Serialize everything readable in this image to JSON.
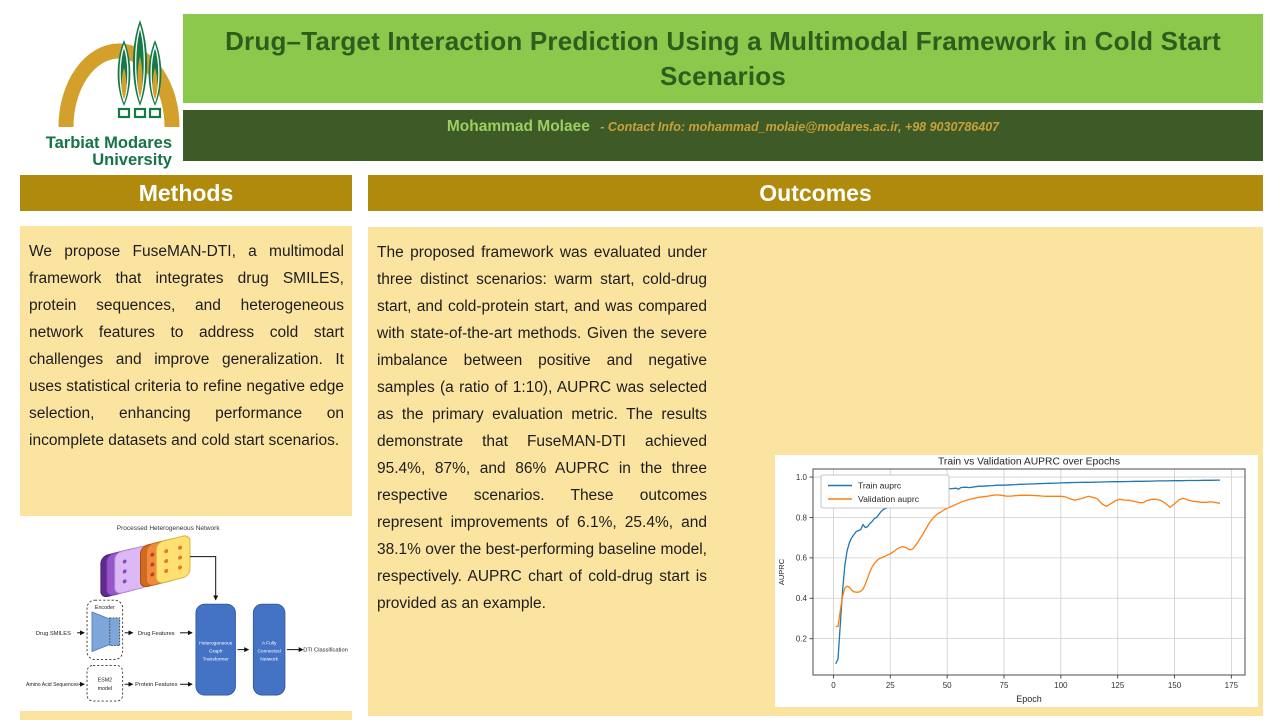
{
  "logo": {
    "name": "tarbiat-modares-university-logo",
    "line1": "Tarbiat Modares",
    "line2": "University"
  },
  "header": {
    "title": "Drug–Target Interaction Prediction Using a Multimodal Framework in Cold Start Scenarios",
    "author": "Mohammad Molaee",
    "contact": "- Contact Info: mohammad_molaie@modares.ac.ir, +98 9030786407"
  },
  "methods": {
    "heading": "Methods",
    "body": "We propose FuseMAN-DTI, a multimodal framework that integrates drug SMILES, protein sequences, and heterogeneous network features to address cold start challenges and improve generalization. It uses statistical criteria to refine negative edge selection, enhancing performance on incomplete datasets and cold start scenarios."
  },
  "outcomes": {
    "heading": "Outcomes",
    "body": "The proposed framework was evaluated under three distinct scenarios: warm start, cold-drug start, and cold-protein start, and was compared with state-of-the-art methods. Given the severe imbalance between positive and negative samples (a ratio of 1:10), AUPRC was selected as the primary evaluation metric. The results demonstrate that FuseMAN-DTI achieved 95.4%, 87%, and 86% AUPRC in the three respective scenarios. These outcomes represent improvements of 6.1%, 25.4%, and 38.1% over the best-performing baseline model, respectively. AUPRC chart of cold-drug start is provided as an example."
  },
  "diagram": {
    "title": "Processed Heterogeneous Network",
    "drug_input": "Drug SMILES",
    "encoder": "Encoder",
    "drug_features": "Drug Features",
    "protein_input": "Amino Acid Sequences",
    "esm2_l1": "ESM2",
    "esm2_l2": "model",
    "protein_features": "Protein Features",
    "hgt_l1": "Heterogeneous",
    "hgt_l2": "Graph",
    "hgt_l3": "Transformer",
    "fcn_l1": "A Fully",
    "fcn_l2": "Connected",
    "fcn_l3": "Network",
    "output": "DTI Classification"
  },
  "colors": {
    "title_bar": "#8CC84B",
    "title_text": "#2F5D1D",
    "author_bar": "#3E5B27",
    "author_name": "#9CCE62",
    "contact_gold": "#C8A13C",
    "section_gold": "#B08A0D",
    "panel_yellow": "#FBE3A0",
    "diagram_blue": "#4472C4",
    "train_blue": "#1f77b4",
    "validation_orange": "#ff7f0e"
  },
  "chart_data": {
    "type": "line",
    "title": "Train vs Validation AUPRC over Epochs",
    "xlabel": "Epoch",
    "ylabel": "AUPRC",
    "xlim": [
      -9,
      181
    ],
    "ylim": [
      0.02,
      1.04
    ],
    "xticks": [
      0,
      25,
      50,
      75,
      100,
      125,
      150,
      175
    ],
    "yticks": [
      0.2,
      0.4,
      0.6,
      0.8,
      1.0
    ],
    "grid": true,
    "legend_position": "upper left",
    "series": [
      {
        "name": "Train auprc",
        "color": "#1f77b4",
        "points": [
          [
            1,
            0.075
          ],
          [
            2,
            0.1
          ],
          [
            3,
            0.27
          ],
          [
            4,
            0.44
          ],
          [
            5,
            0.56
          ],
          [
            6,
            0.635
          ],
          [
            7,
            0.675
          ],
          [
            8,
            0.7
          ],
          [
            9,
            0.715
          ],
          [
            10,
            0.73
          ],
          [
            11,
            0.735
          ],
          [
            12,
            0.74
          ],
          [
            13,
            0.765
          ],
          [
            14,
            0.75
          ],
          [
            15,
            0.755
          ],
          [
            16,
            0.77
          ],
          [
            17,
            0.78
          ],
          [
            18,
            0.795
          ],
          [
            19,
            0.8
          ],
          [
            20,
            0.815
          ],
          [
            21,
            0.83
          ],
          [
            22,
            0.84
          ],
          [
            23,
            0.845
          ],
          [
            24,
            0.85
          ],
          [
            25,
            0.855
          ],
          [
            26,
            0.853
          ],
          [
            27,
            0.86
          ],
          [
            28,
            0.857
          ],
          [
            29,
            0.855
          ],
          [
            30,
            0.862
          ],
          [
            31,
            0.868
          ],
          [
            32,
            0.872
          ],
          [
            33,
            0.878
          ],
          [
            34,
            0.888
          ],
          [
            35,
            0.895
          ],
          [
            36,
            0.885
          ],
          [
            37,
            0.89
          ],
          [
            38,
            0.9
          ],
          [
            39,
            0.895
          ],
          [
            40,
            0.91
          ],
          [
            42,
            0.915
          ],
          [
            44,
            0.925
          ],
          [
            46,
            0.93
          ],
          [
            48,
            0.928
          ],
          [
            50,
            0.94
          ],
          [
            52,
            0.943
          ],
          [
            54,
            0.945
          ],
          [
            55,
            0.94
          ],
          [
            56,
            0.948
          ],
          [
            58,
            0.95
          ],
          [
            60,
            0.948
          ],
          [
            62,
            0.952
          ],
          [
            64,
            0.955
          ],
          [
            66,
            0.955
          ],
          [
            68,
            0.957
          ],
          [
            70,
            0.958
          ],
          [
            72,
            0.96
          ],
          [
            75,
            0.96
          ],
          [
            78,
            0.962
          ],
          [
            80,
            0.963
          ],
          [
            82,
            0.964
          ],
          [
            85,
            0.965
          ],
          [
            88,
            0.966
          ],
          [
            90,
            0.967
          ],
          [
            92,
            0.968
          ],
          [
            95,
            0.969
          ],
          [
            98,
            0.97
          ],
          [
            100,
            0.971
          ],
          [
            103,
            0.972
          ],
          [
            106,
            0.973
          ],
          [
            110,
            0.974
          ],
          [
            113,
            0.974
          ],
          [
            116,
            0.975
          ],
          [
            120,
            0.976
          ],
          [
            123,
            0.977
          ],
          [
            126,
            0.977
          ],
          [
            130,
            0.978
          ],
          [
            133,
            0.979
          ],
          [
            136,
            0.979
          ],
          [
            140,
            0.98
          ],
          [
            143,
            0.981
          ],
          [
            146,
            0.981
          ],
          [
            150,
            0.982
          ],
          [
            153,
            0.982
          ],
          [
            156,
            0.983
          ],
          [
            160,
            0.983
          ],
          [
            163,
            0.984
          ],
          [
            166,
            0.984
          ],
          [
            170,
            0.985
          ]
        ]
      },
      {
        "name": "Validation auprc",
        "color": "#ff7f0e",
        "points": [
          [
            1,
            0.26
          ],
          [
            2,
            0.26
          ],
          [
            3,
            0.34
          ],
          [
            4,
            0.41
          ],
          [
            5,
            0.45
          ],
          [
            6,
            0.46
          ],
          [
            7,
            0.455
          ],
          [
            8,
            0.44
          ],
          [
            9,
            0.432
          ],
          [
            10,
            0.43
          ],
          [
            11,
            0.43
          ],
          [
            12,
            0.435
          ],
          [
            13,
            0.445
          ],
          [
            14,
            0.47
          ],
          [
            15,
            0.5
          ],
          [
            16,
            0.53
          ],
          [
            17,
            0.555
          ],
          [
            18,
            0.572
          ],
          [
            19,
            0.585
          ],
          [
            20,
            0.595
          ],
          [
            21,
            0.6
          ],
          [
            22,
            0.605
          ],
          [
            23,
            0.61
          ],
          [
            24,
            0.615
          ],
          [
            25,
            0.62
          ],
          [
            26,
            0.628
          ],
          [
            27,
            0.635
          ],
          [
            28,
            0.645
          ],
          [
            29,
            0.65
          ],
          [
            30,
            0.655
          ],
          [
            31,
            0.655
          ],
          [
            32,
            0.65
          ],
          [
            33,
            0.643
          ],
          [
            34,
            0.64
          ],
          [
            35,
            0.645
          ],
          [
            36,
            0.66
          ],
          [
            37,
            0.675
          ],
          [
            38,
            0.695
          ],
          [
            39,
            0.71
          ],
          [
            40,
            0.73
          ],
          [
            41,
            0.75
          ],
          [
            42,
            0.77
          ],
          [
            43,
            0.785
          ],
          [
            44,
            0.8
          ],
          [
            45,
            0.81
          ],
          [
            46,
            0.82
          ],
          [
            47,
            0.825
          ],
          [
            48,
            0.833
          ],
          [
            49,
            0.84
          ],
          [
            50,
            0.845
          ],
          [
            52,
            0.855
          ],
          [
            54,
            0.865
          ],
          [
            56,
            0.875
          ],
          [
            58,
            0.883
          ],
          [
            60,
            0.89
          ],
          [
            62,
            0.895
          ],
          [
            64,
            0.9
          ],
          [
            66,
            0.903
          ],
          [
            68,
            0.906
          ],
          [
            70,
            0.91
          ],
          [
            72,
            0.912
          ],
          [
            74,
            0.91
          ],
          [
            76,
            0.906
          ],
          [
            78,
            0.906
          ],
          [
            80,
            0.908
          ],
          [
            82,
            0.91
          ],
          [
            84,
            0.91
          ],
          [
            86,
            0.91
          ],
          [
            88,
            0.909
          ],
          [
            90,
            0.908
          ],
          [
            92,
            0.906
          ],
          [
            94,
            0.905
          ],
          [
            96,
            0.905
          ],
          [
            98,
            0.905
          ],
          [
            100,
            0.905
          ],
          [
            102,
            0.902
          ],
          [
            104,
            0.893
          ],
          [
            106,
            0.886
          ],
          [
            108,
            0.89
          ],
          [
            110,
            0.897
          ],
          [
            112,
            0.905
          ],
          [
            114,
            0.9
          ],
          [
            116,
            0.893
          ],
          [
            118,
            0.868
          ],
          [
            120,
            0.855
          ],
          [
            122,
            0.868
          ],
          [
            124,
            0.883
          ],
          [
            126,
            0.89
          ],
          [
            128,
            0.886
          ],
          [
            130,
            0.885
          ],
          [
            132,
            0.88
          ],
          [
            134,
            0.875
          ],
          [
            136,
            0.872
          ],
          [
            138,
            0.884
          ],
          [
            140,
            0.89
          ],
          [
            142,
            0.89
          ],
          [
            144,
            0.884
          ],
          [
            146,
            0.87
          ],
          [
            148,
            0.85
          ],
          [
            150,
            0.868
          ],
          [
            152,
            0.888
          ],
          [
            154,
            0.895
          ],
          [
            156,
            0.886
          ],
          [
            158,
            0.88
          ],
          [
            160,
            0.878
          ],
          [
            162,
            0.875
          ],
          [
            164,
            0.875
          ],
          [
            166,
            0.877
          ],
          [
            168,
            0.874
          ],
          [
            170,
            0.87
          ]
        ]
      }
    ]
  }
}
